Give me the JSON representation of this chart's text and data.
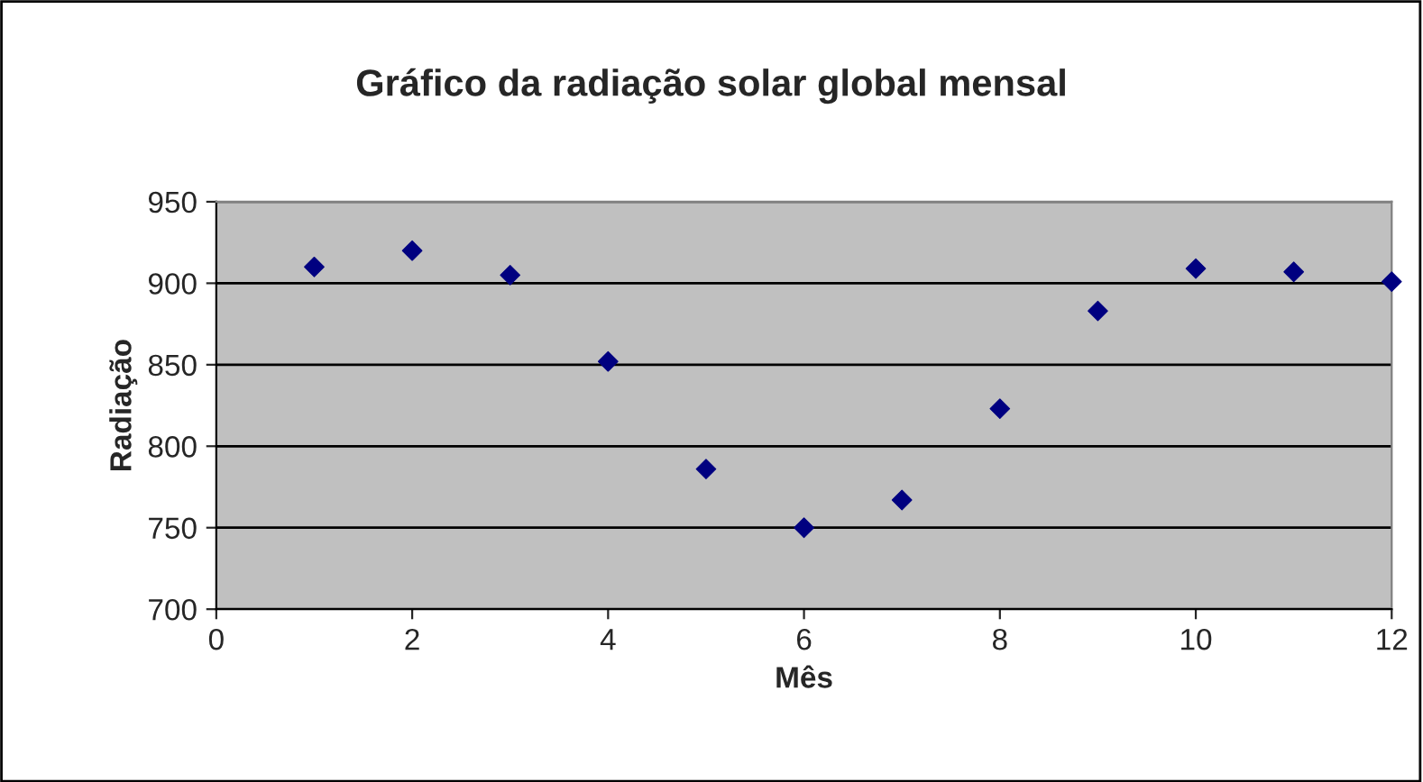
{
  "chart_data": {
    "type": "scatter",
    "title": "Gráfico da radiação solar global mensal",
    "xlabel": "Mês",
    "ylabel": "Radiação",
    "x": [
      1,
      2,
      3,
      4,
      5,
      6,
      7,
      8,
      9,
      10,
      11,
      12
    ],
    "series": [
      {
        "color": "#000080",
        "values": [
          910,
          920,
          905,
          852,
          786,
          750,
          767,
          823,
          883,
          909,
          907,
          901
        ]
      }
    ],
    "xlim": [
      0,
      12
    ],
    "xticks": [
      0,
      2,
      4,
      6,
      8,
      10,
      12
    ],
    "ylim": [
      700,
      950
    ],
    "yticks": [
      700,
      750,
      800,
      850,
      900,
      950
    ],
    "grid": "y",
    "marker": "diamond",
    "legend": false
  }
}
